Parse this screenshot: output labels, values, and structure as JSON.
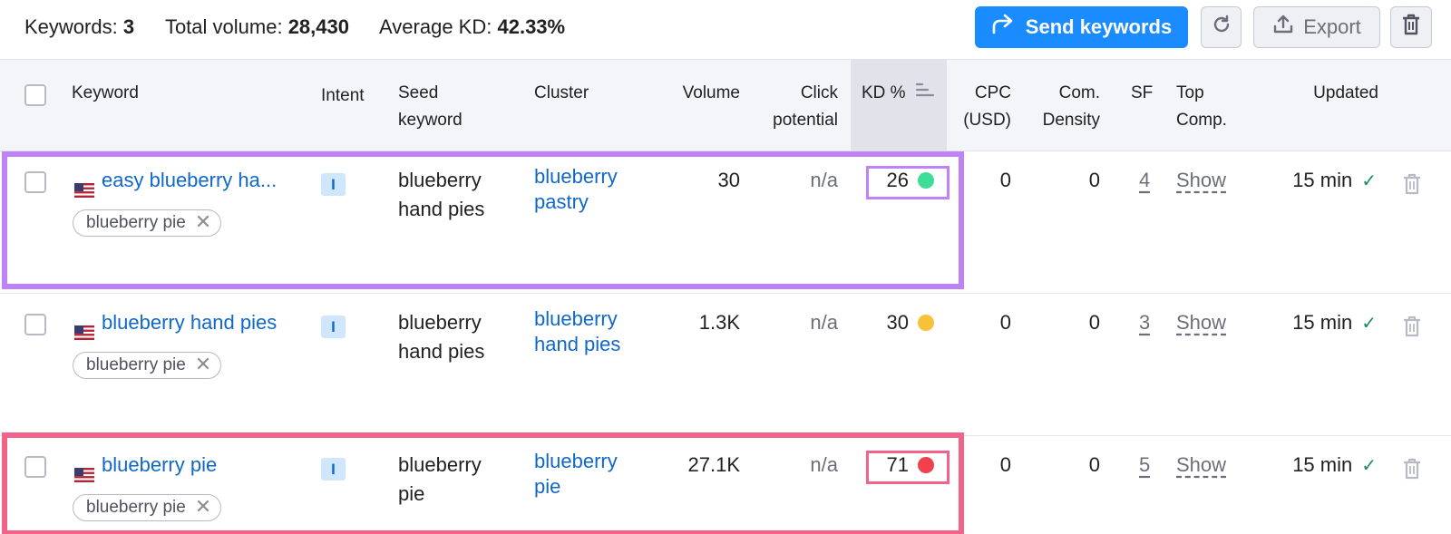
{
  "summary": {
    "keywords_label": "Keywords:",
    "keywords_value": "3",
    "volume_label": "Total volume:",
    "volume_value": "28,430",
    "kd_label": "Average KD:",
    "kd_value": "42.33%"
  },
  "toolbar": {
    "send_label": "Send keywords",
    "export_label": "Export"
  },
  "columns": {
    "keyword": "Keyword",
    "intent": "Intent",
    "seed_1": "Seed",
    "seed_2": "keyword",
    "cluster": "Cluster",
    "volume": "Volume",
    "click_1": "Click",
    "click_2": "potential",
    "kd": "KD %",
    "cpc_1": "CPC",
    "cpc_2": "(USD)",
    "com_1": "Com.",
    "com_2": "Density",
    "sf": "SF",
    "top_1": "Top",
    "top_2": "Comp.",
    "updated": "Updated"
  },
  "rows": [
    {
      "keyword": "easy blueberry ha...",
      "tag": "blueberry pie",
      "intent": "I",
      "seed_1": "blueberry",
      "seed_2": "hand pies",
      "cluster_1": "blueberry",
      "cluster_2": "pastry",
      "volume": "30",
      "click": "n/a",
      "kd": "26",
      "kd_color": "#3ddc97",
      "cpc": "0",
      "com": "0",
      "sf": "4",
      "top": "Show",
      "updated": "15 min"
    },
    {
      "keyword": "blueberry hand pies",
      "tag": "blueberry pie",
      "intent": "I",
      "seed_1": "blueberry",
      "seed_2": "hand pies",
      "cluster_1": "blueberry",
      "cluster_2": "hand pies",
      "volume": "1.3K",
      "click": "n/a",
      "kd": "30",
      "kd_color": "#f7c23b",
      "cpc": "0",
      "com": "0",
      "sf": "3",
      "top": "Show",
      "updated": "15 min"
    },
    {
      "keyword": "blueberry pie",
      "tag": "blueberry pie",
      "intent": "I",
      "seed_1": "blueberry",
      "seed_2": "pie",
      "cluster_1": "blueberry",
      "cluster_2": "pie",
      "volume": "27.1K",
      "click": "n/a",
      "kd": "71",
      "kd_color": "#f0414d",
      "cpc": "0",
      "com": "0",
      "sf": "5",
      "top": "Show",
      "updated": "15 min"
    }
  ],
  "colors": {
    "accent": "#1a8cff",
    "link": "#1068c7",
    "highlight_purple": "#c082f7",
    "highlight_pink": "#f2638a"
  }
}
